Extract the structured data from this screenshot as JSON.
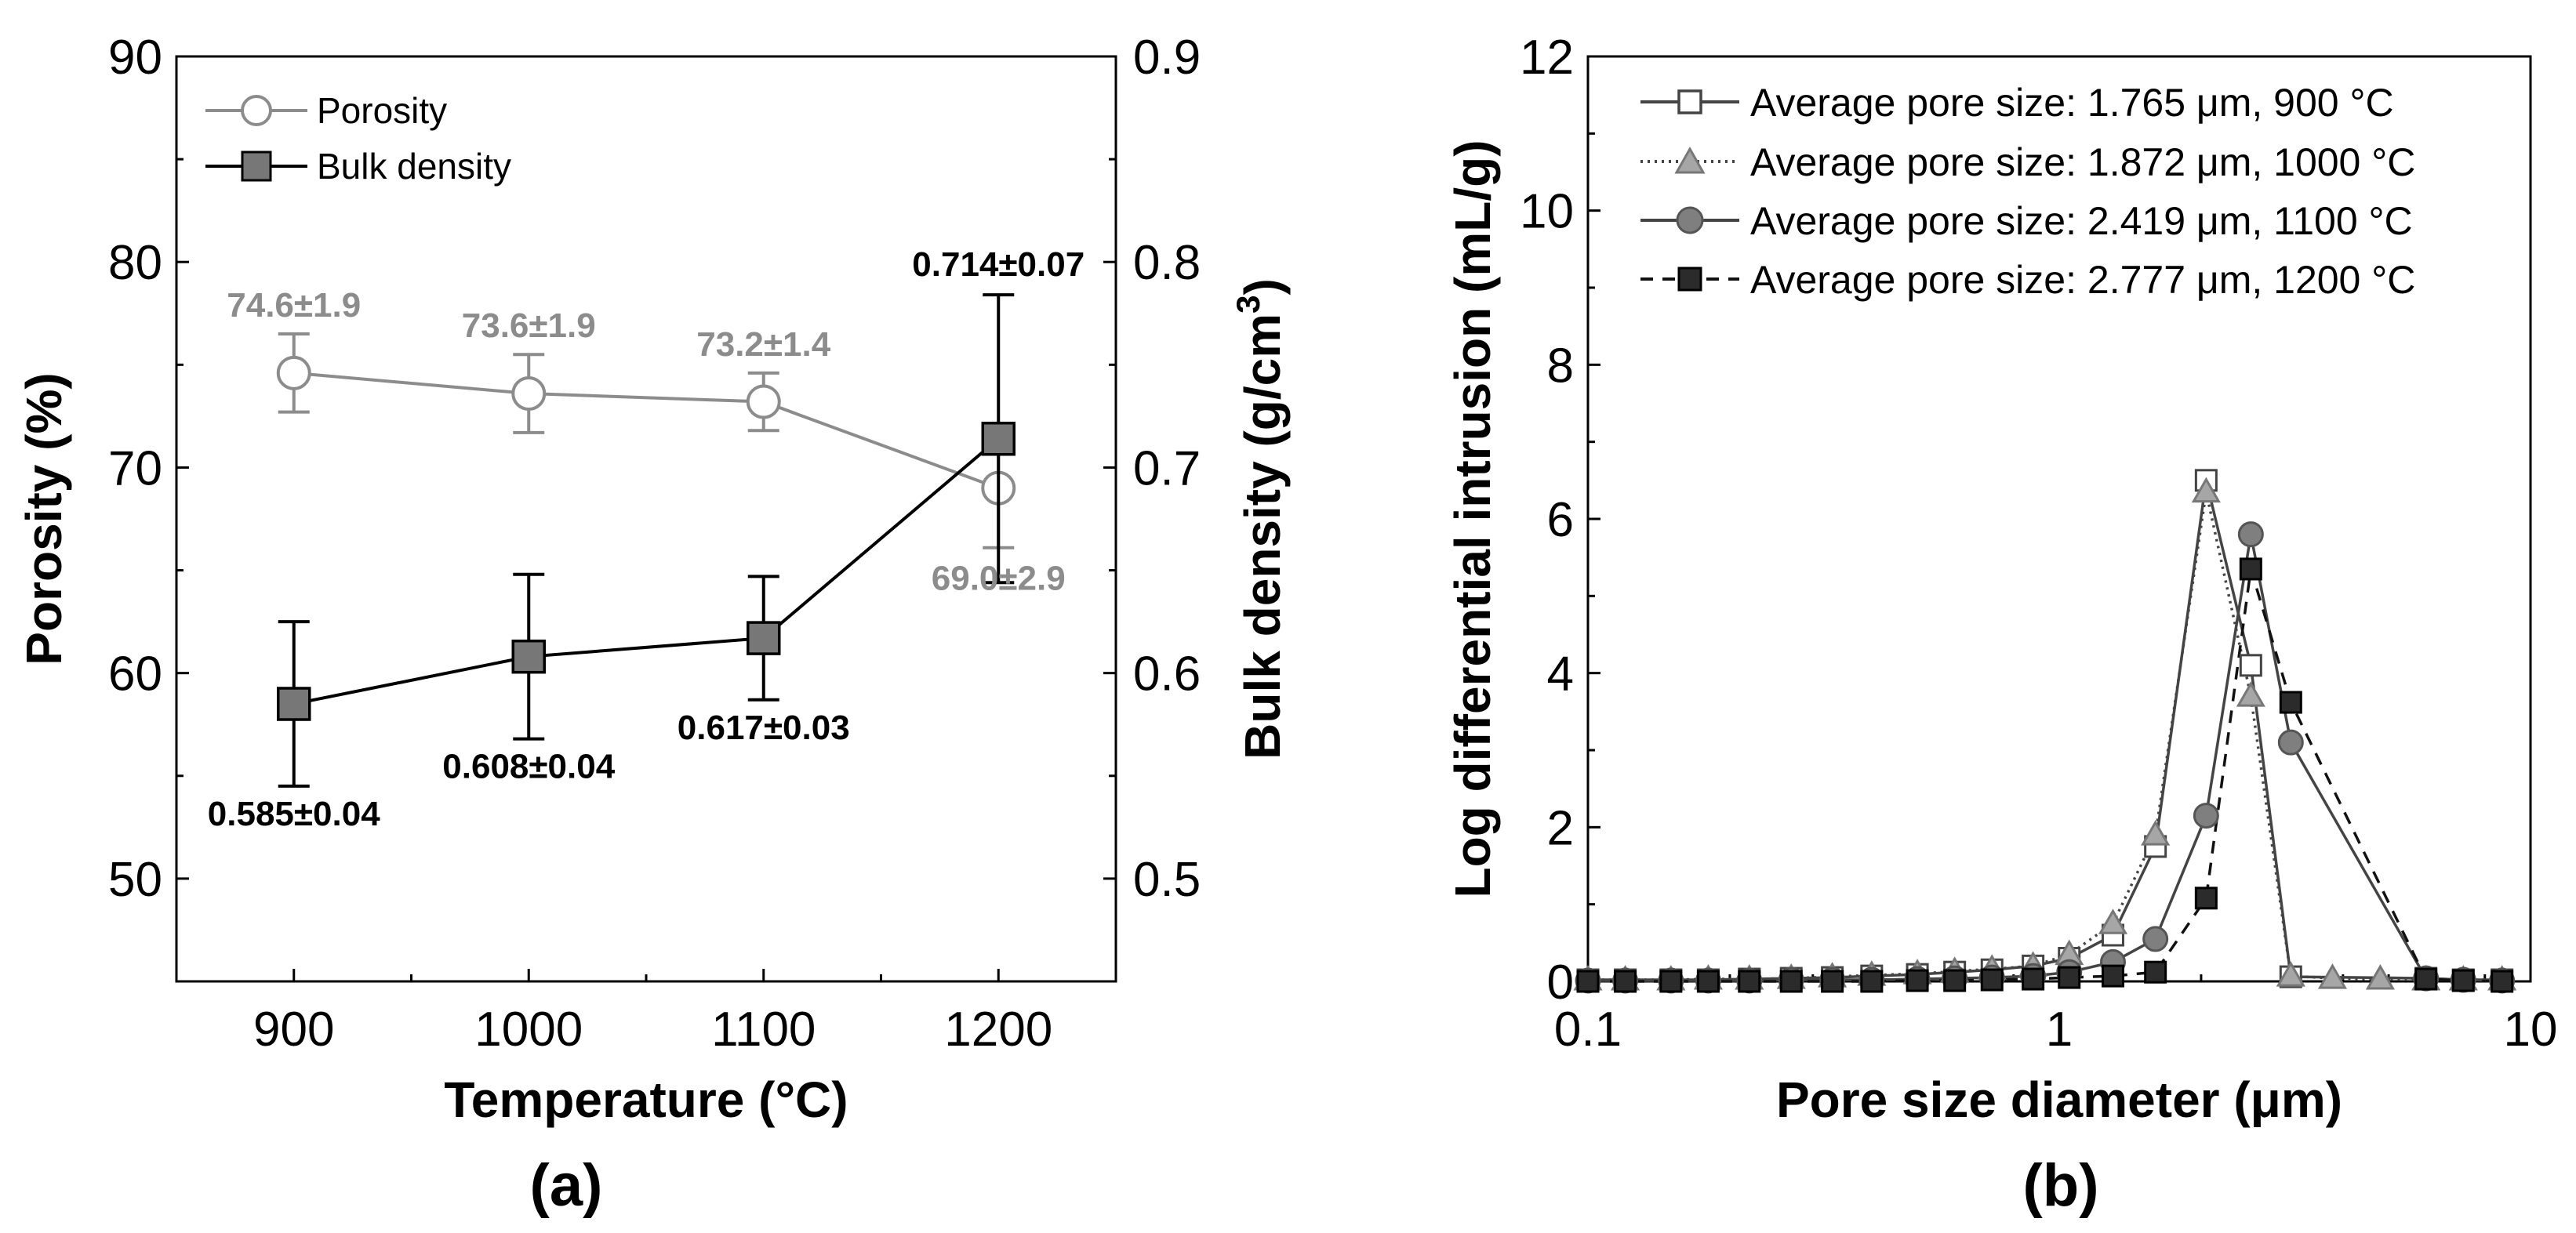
{
  "colors": {
    "porosity": "#8c8c8c",
    "bulk_fill": "#777777",
    "dark": "#2b2b2b",
    "axis": "#000000"
  },
  "chart_data": [
    {
      "id": "a",
      "type": "line",
      "panel_label": "(a)",
      "xlabel": "Temperature (°C)",
      "ylabel": "Porosity (%)",
      "y2label": "Bulk density (g/cm",
      "y2label_sup": "3",
      "y2label_end": ")",
      "xlim": [
        850,
        1250
      ],
      "ylim": [
        45,
        90
      ],
      "y2lim": [
        0.45,
        0.9
      ],
      "xticks": [
        900,
        1000,
        1100,
        1200
      ],
      "yticks": [
        50,
        60,
        70,
        80,
        90
      ],
      "y2ticks": [
        "0.5",
        "0.6",
        "0.7",
        "0.8",
        "0.9"
      ],
      "legend_position": "top-left",
      "series": [
        {
          "name": "Porosity",
          "axis": "left",
          "marker": "circle-open",
          "x": [
            900,
            1000,
            1100,
            1200
          ],
          "y": [
            74.6,
            73.6,
            73.2,
            69.0
          ],
          "err": [
            1.9,
            1.9,
            1.4,
            2.9
          ],
          "labels": [
            "74.6±1.9",
            "73.6±1.9",
            "73.2±1.4",
            "69.0±2.9"
          ]
        },
        {
          "name": "Bulk density",
          "axis": "right",
          "marker": "square-filled",
          "x": [
            900,
            1000,
            1100,
            1200
          ],
          "y": [
            0.585,
            0.608,
            0.617,
            0.714
          ],
          "err_low": [
            0.04,
            0.04,
            0.03,
            0.07
          ],
          "err_high": [
            0.04,
            0.04,
            0.03,
            0.07
          ],
          "labels": [
            "0.585±0.04",
            "0.608±0.04",
            "0.617±0.03",
            "0.714±0.07"
          ]
        }
      ]
    },
    {
      "id": "b",
      "type": "line",
      "panel_label": "(b)",
      "xlabel": "Pore size diameter (μm)",
      "ylabel": "Log differential intrusion (mL/g)",
      "xscale": "log",
      "xlim": [
        0.1,
        10
      ],
      "ylim": [
        0,
        12
      ],
      "xticks": [
        "0.1",
        "1",
        "10"
      ],
      "yticks": [
        0,
        2,
        4,
        6,
        8,
        10,
        12
      ],
      "legend_position": "top-right",
      "series": [
        {
          "name": "Average pore size: 1.765 μm, 900 °C",
          "marker": "square-open",
          "line": "solid",
          "x": [
            0.1,
            0.12,
            0.15,
            0.18,
            0.22,
            0.27,
            0.33,
            0.4,
            0.5,
            0.6,
            0.72,
            0.88,
            1.05,
            1.3,
            1.6,
            2.05,
            2.55,
            3.1,
            6.0,
            7.2,
            8.7
          ],
          "y": [
            0.02,
            0.02,
            0.02,
            0.02,
            0.03,
            0.04,
            0.05,
            0.07,
            0.09,
            0.12,
            0.15,
            0.2,
            0.3,
            0.6,
            1.75,
            6.5,
            4.1,
            0.06,
            0.04,
            0.02,
            0.02
          ]
        },
        {
          "name": "Average pore size: 1.872 μm, 1000 °C",
          "marker": "triangle-filled",
          "line": "dotted",
          "x": [
            0.1,
            0.12,
            0.15,
            0.18,
            0.22,
            0.27,
            0.33,
            0.4,
            0.5,
            0.6,
            0.72,
            0.88,
            1.05,
            1.3,
            1.6,
            2.05,
            2.55,
            3.1,
            3.8,
            4.8,
            6.0,
            7.2,
            8.7
          ],
          "y": [
            0.02,
            0.02,
            0.02,
            0.03,
            0.03,
            0.04,
            0.06,
            0.08,
            0.1,
            0.13,
            0.16,
            0.2,
            0.35,
            0.75,
            1.9,
            6.35,
            3.7,
            0.07,
            0.04,
            0.03,
            0.02,
            0.02,
            0.02
          ]
        },
        {
          "name": "Average pore size: 2.419 μm, 1100 °C",
          "marker": "circle-filled",
          "line": "solid",
          "x": [
            0.1,
            0.12,
            0.15,
            0.18,
            0.22,
            0.27,
            0.33,
            0.4,
            0.5,
            0.6,
            0.72,
            0.88,
            1.05,
            1.3,
            1.6,
            2.05,
            2.55,
            3.1,
            6.0,
            7.2,
            8.7
          ],
          "y": [
            0.01,
            0.01,
            0.01,
            0.01,
            0.01,
            0.02,
            0.02,
            0.02,
            0.03,
            0.04,
            0.05,
            0.07,
            0.12,
            0.25,
            0.55,
            2.15,
            5.8,
            3.1,
            0.04,
            0.02,
            0.01
          ]
        },
        {
          "name": "Average pore size: 2.777 μm, 1200 °C",
          "marker": "square-filled",
          "line": "dashed",
          "x": [
            0.1,
            0.12,
            0.15,
            0.18,
            0.22,
            0.27,
            0.33,
            0.4,
            0.5,
            0.6,
            0.72,
            0.88,
            1.05,
            1.3,
            1.6,
            2.05,
            2.55,
            3.1,
            6.0,
            7.2,
            8.7
          ],
          "y": [
            0.0,
            0.0,
            0.0,
            0.0,
            0.0,
            0.0,
            0.0,
            0.0,
            0.01,
            0.01,
            0.02,
            0.03,
            0.05,
            0.07,
            0.12,
            1.08,
            5.35,
            3.62,
            0.03,
            0.01,
            0.0
          ]
        }
      ]
    }
  ]
}
